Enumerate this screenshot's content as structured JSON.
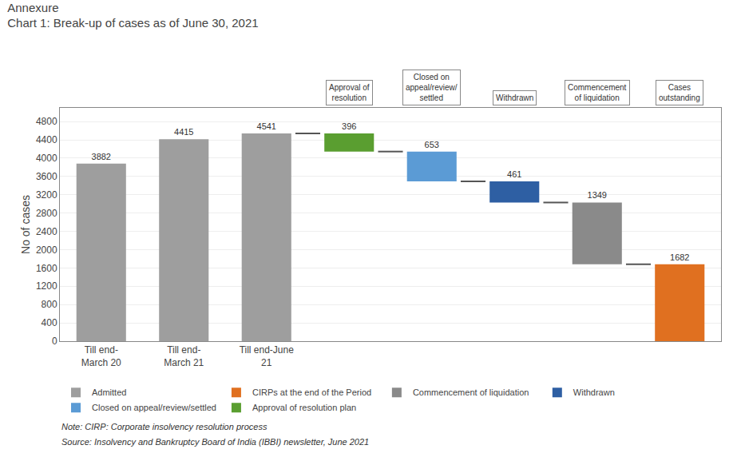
{
  "chart_data": {
    "type": "waterfall",
    "title": "Annexure",
    "subtitle": "Chart 1: Break-up of cases as of June 30, 2021",
    "ylabel": "No of cases",
    "categories": [
      "Till end-\nMarch 20",
      "Till end-\nMarch 21",
      "Till end-June\n21",
      null,
      null,
      null,
      null,
      null
    ],
    "annotations": [
      "Approval of\nresolution",
      "Closed on\nappeal/review/\nsettled",
      "Withdrawn",
      "Commencement\nof liquidation",
      "Cases\noutstanding"
    ],
    "notes": [
      "Note: CIRP: Corporate insolvency resolution process",
      "Source: Insolvency and Bankruptcy Board of India (IBBI) newsletter, June 2021"
    ],
    "series": [
      {
        "name": "Admitted",
        "color": "#9e9e9e",
        "type": "bar",
        "values": [
          3882,
          4415,
          4541,
          null,
          null,
          null,
          null,
          null
        ]
      },
      {
        "name": "CIRPs at the end of the Period",
        "color": "#e07020",
        "type": "bar",
        "values": [
          null,
          null,
          null,
          null,
          null,
          null,
          null,
          1682
        ]
      },
      {
        "name": "Commencement of liquidation",
        "color": "#8a8a8a",
        "type": "waterfall",
        "values": [
          null,
          null,
          null,
          null,
          null,
          null,
          1349,
          null
        ]
      },
      {
        "name": "Withdrawn",
        "color": "#2e5fa3",
        "type": "waterfall",
        "values": [
          null,
          null,
          null,
          null,
          null,
          461,
          null,
          null
        ]
      },
      {
        "name": "Closed on appeal/review/settled",
        "color": "#5b9bd5",
        "type": "waterfall",
        "values": [
          null,
          null,
          null,
          null,
          653,
          null,
          null,
          null
        ]
      },
      {
        "name": "Approval of resolution plan",
        "color": "#5a9e30",
        "type": "waterfall",
        "values": [
          null,
          null,
          null,
          396,
          null,
          null,
          null,
          null
        ]
      }
    ],
    "ylim": [
      0,
      5100
    ],
    "yticks": [
      0,
      400,
      800,
      1200,
      1600,
      2000,
      2400,
      2800,
      3200,
      3600,
      4000,
      4400,
      4800
    ],
    "grid": true,
    "data_labels": true,
    "legend": "lower left"
  }
}
